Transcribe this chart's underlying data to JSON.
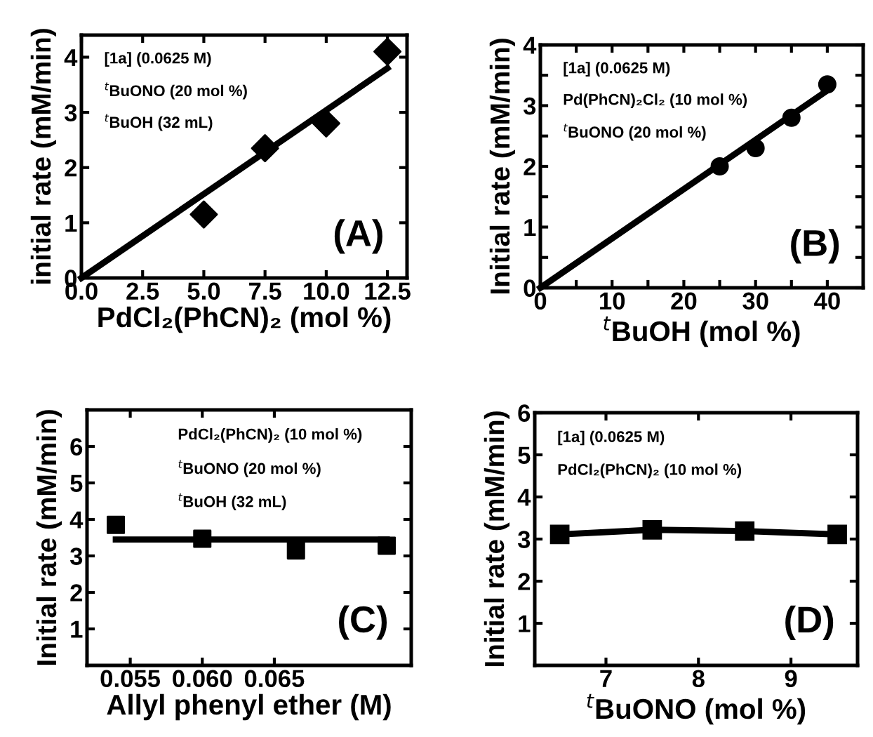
{
  "chart_data": [
    {
      "type": "scatter",
      "xlabel": "PdCl₂(PhCN)₂ (mol %)",
      "ylabel": "initial rate (mM/min)",
      "xlim": [
        0,
        13.3
      ],
      "ylim": [
        0,
        4.4
      ],
      "xticks": [
        {
          "value": 0,
          "label": "0.0"
        },
        2.5,
        {
          "value": 5,
          "label": "5.0"
        },
        7.5,
        {
          "value": 10,
          "label": "10.0"
        },
        12.5
      ],
      "yticks": [
        0,
        1,
        2,
        3,
        4
      ],
      "annotations": [
        "[1a] (0.0625 M)",
        "$^{t}$BuONO (20 mol %)",
        "$^{t}$BuOH (32 mL)",
        "(A)"
      ],
      "series": [
        {
          "color": "#000000",
          "marker": "diamond",
          "x": [
            5,
            7.5,
            10,
            12.5
          ],
          "values": [
            1.15,
            2.35,
            2.8,
            4.1
          ]
        },
        {
          "type": "line",
          "color": "#000000",
          "marker": "none",
          "line_style": "solid",
          "x": [
            0,
            12.5
          ],
          "values": [
            0,
            3.8
          ]
        }
      ]
    },
    {
      "type": "scatter",
      "xlabel": "$^{t}$BuOH (mol %)",
      "ylabel": "Initial rate (mM/min)",
      "xlim": [
        0,
        45
      ],
      "ylim": [
        0,
        4
      ],
      "xticks": [
        0,
        {
          "value": 5,
          "label": null
        },
        10,
        {
          "value": 15,
          "label": null
        },
        20,
        {
          "value": 25,
          "label": null
        },
        30,
        {
          "value": 35,
          "label": null
        },
        40
      ],
      "yticks": [
        0,
        {
          "value": 0.5,
          "label": null
        },
        1,
        {
          "value": 1.5,
          "label": null
        },
        2,
        {
          "value": 2.5,
          "label": null
        },
        3,
        {
          "value": 3.5,
          "label": null
        },
        4
      ],
      "annotations": [
        "[1a] (0.0625 M)",
        "Pd(PhCN)₂Cl₂ (10 mol %)",
        "$^{t}$BuONO (20 mol %)",
        "(B)"
      ],
      "series": [
        {
          "color": "#000000",
          "marker": "circle",
          "x": [
            25,
            30,
            35,
            40
          ],
          "values": [
            2.0,
            2.3,
            2.8,
            3.35
          ]
        },
        {
          "type": "line",
          "color": "#000000",
          "marker": "none",
          "line_style": "solid",
          "x": [
            0,
            40
          ],
          "values": [
            0,
            3.25
          ]
        }
      ]
    },
    {
      "type": "scatter",
      "xlabel": "Allyl phenyl ether (M)",
      "ylabel": "Initial rate (mM/min)",
      "xlim": [
        0.052,
        0.0745
      ],
      "ylim": [
        0,
        7
      ],
      "xticks": [
        0.055,
        {
          "value": 0.06,
          "label": "0.060"
        },
        0.065
      ],
      "yticks": [
        1,
        2,
        3,
        4,
        5,
        6
      ],
      "annotations": [
        "PdCl₂(PhCN)₂ (10 mol %)",
        "$^{t}$BuONO (20 mol %)",
        "$^{t}$BuOH (32 mL)",
        "(C)"
      ],
      "series": [
        {
          "color": "#000000",
          "marker": "square",
          "x": [
            0.054,
            0.06,
            0.0665,
            0.0728
          ],
          "values": [
            3.85,
            3.47,
            3.15,
            3.28
          ]
        },
        {
          "type": "line",
          "color": "#000000",
          "marker": "none",
          "line_style": "solid",
          "x": [
            0.054,
            0.0728
          ],
          "values": [
            3.45,
            3.45
          ]
        }
      ]
    },
    {
      "type": "line",
      "xlabel": "$^{t}$BuONO (mol %)",
      "ylabel": "Initial rate (mM/min)",
      "xlim": [
        6.23,
        9.72
      ],
      "ylim": [
        0,
        6
      ],
      "xticks": [
        7,
        8,
        9
      ],
      "yticks": [
        1,
        2,
        3,
        4,
        5,
        6
      ],
      "annotations": [
        "[1a] (0.0625 M)",
        "PdCl₂(PhCN)₂ (10 mol %)",
        "(D)"
      ],
      "series": [
        {
          "color": "#000000",
          "marker": "square",
          "line_style": "solid",
          "x": [
            6.5,
            7.5,
            8.5,
            9.5
          ],
          "values": [
            3.11,
            3.22,
            3.19,
            3.11
          ]
        }
      ]
    }
  ]
}
